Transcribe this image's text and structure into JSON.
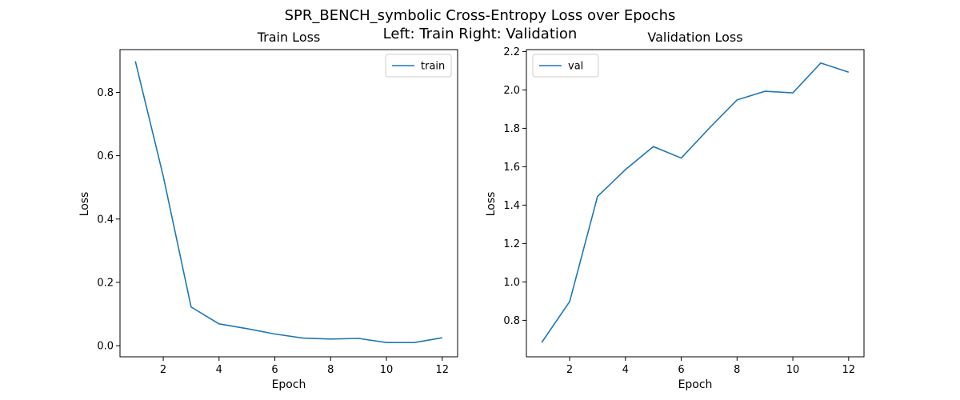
{
  "figure": {
    "title_line1": "SPR_BENCH_symbolic Cross-Entropy Loss over Epochs",
    "title_line2": "Left: Train  Right: Validation"
  },
  "chart_data": [
    {
      "type": "line",
      "title": "Train Loss",
      "xlabel": "Epoch",
      "ylabel": "Loss",
      "xlim": [
        0.45,
        12.55
      ],
      "ylim": [
        -0.035,
        0.935
      ],
      "xticks": [
        2,
        4,
        6,
        8,
        10,
        12
      ],
      "yticks": [
        0.0,
        0.2,
        0.4,
        0.6,
        0.8
      ],
      "ytick_labels": [
        "0.0",
        "0.2",
        "0.4",
        "0.6",
        "0.8"
      ],
      "legend_position": "top-right",
      "series": [
        {
          "name": "train",
          "color": "#1f77b4",
          "x": [
            1,
            2,
            3,
            4,
            5,
            6,
            7,
            8,
            9,
            10,
            11,
            12
          ],
          "y": [
            0.898,
            0.535,
            0.122,
            0.069,
            0.054,
            0.037,
            0.024,
            0.021,
            0.023,
            0.01,
            0.01,
            0.025
          ]
        }
      ]
    },
    {
      "type": "line",
      "title": "Validation Loss",
      "xlabel": "Epoch",
      "ylabel": "Loss",
      "xlim": [
        0.45,
        12.55
      ],
      "ylim": [
        0.61,
        2.21
      ],
      "xticks": [
        2,
        4,
        6,
        8,
        10,
        12
      ],
      "yticks": [
        0.8,
        1.0,
        1.2,
        1.4,
        1.6,
        1.8,
        2.0,
        2.2
      ],
      "ytick_labels": [
        "0.8",
        "1.0",
        "1.2",
        "1.4",
        "1.6",
        "1.8",
        "2.0",
        "2.2"
      ],
      "legend_position": "top-left",
      "series": [
        {
          "name": "val",
          "color": "#1f77b4",
          "x": [
            1,
            2,
            3,
            4,
            5,
            6,
            7,
            8,
            9,
            10,
            11,
            12
          ],
          "y": [
            0.685,
            0.898,
            1.445,
            1.585,
            1.705,
            1.645,
            1.8,
            1.948,
            1.993,
            1.985,
            2.14,
            2.092
          ]
        }
      ]
    }
  ]
}
